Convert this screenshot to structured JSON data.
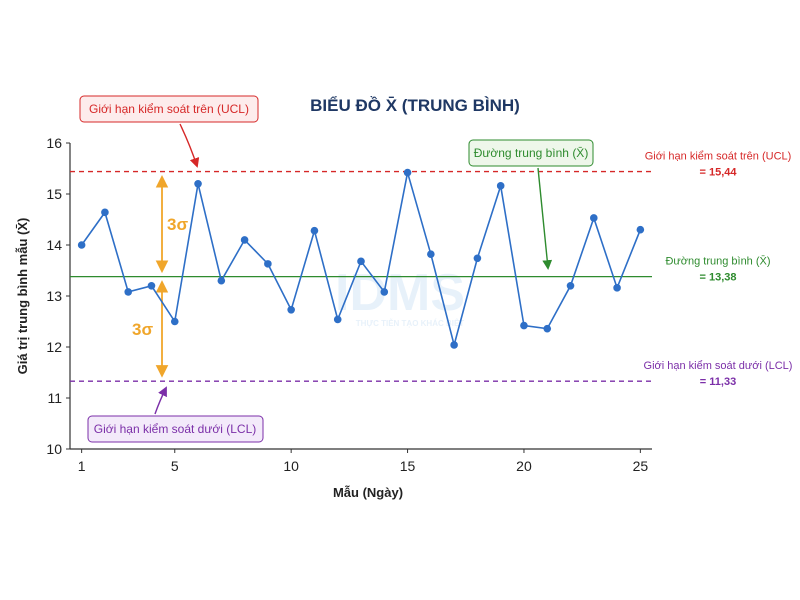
{
  "watermark": {
    "logo": "IDMS",
    "tagline": "THỰC TIỄN TẠO KHÁC BIỆT"
  },
  "chart_data": {
    "type": "line",
    "title": "BIỂU ĐỒ X̄ (TRUNG BÌNH)",
    "xlabel": "Mẫu (Ngày)",
    "ylabel": "Giá trị trung bình mẫu (X̄)",
    "xlim": [
      0.5,
      25.5
    ],
    "ylim": [
      10,
      16
    ],
    "x_ticks": [
      1,
      5,
      10,
      15,
      20,
      25
    ],
    "y_ticks": [
      10,
      11,
      12,
      13,
      14,
      15,
      16
    ],
    "series": [
      {
        "color": "#2e6fc7",
        "x": [
          1,
          2,
          3,
          4,
          5,
          6,
          7,
          8,
          9,
          10,
          11,
          12,
          13,
          14,
          15,
          16,
          17,
          18,
          19,
          20,
          21,
          22,
          23,
          24,
          25
        ],
        "values": [
          14.0,
          14.64,
          13.08,
          13.2,
          12.5,
          15.2,
          13.3,
          14.1,
          13.63,
          12.73,
          14.28,
          12.54,
          13.68,
          13.08,
          15.42,
          13.82,
          12.04,
          13.74,
          15.16,
          12.42,
          12.36,
          13.2,
          14.53,
          13.16,
          14.3
        ]
      }
    ],
    "reference_lines": [
      {
        "id": "ucl",
        "value": 15.44,
        "color": "#d62828",
        "style": "dashed",
        "side_label": "Giới hạn kiểm soát trên (UCL)",
        "side_value": "= 15,44",
        "callout": "Giới hạn kiểm soát trên (UCL)"
      },
      {
        "id": "center",
        "value": 13.38,
        "color": "#2e8b2e",
        "style": "solid",
        "side_label": "Đường trung bình (X̄)",
        "side_value": "= 13,38",
        "callout": "Đường trung bình (X̄)"
      },
      {
        "id": "lcl",
        "value": 11.33,
        "color": "#7b2fa8",
        "style": "dashed",
        "side_label": "Giới hạn kiểm soát dưới (LCL)",
        "side_value": "= 11,33",
        "callout": "Giới hạn kiểm soát dưới (LCL)"
      }
    ],
    "sigma_labels": [
      "3σ",
      "3σ"
    ],
    "sigma_color": "#f0a62b",
    "grid": false
  }
}
